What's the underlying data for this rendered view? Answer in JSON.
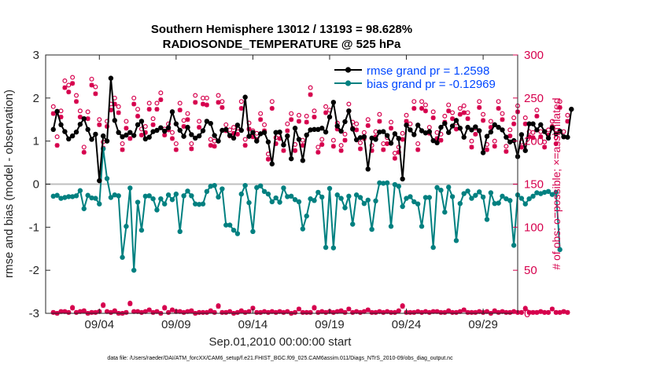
{
  "chart_data": {
    "type": "line",
    "title": "Southern Hemisphere 13012 / 13193 = 98.628%",
    "subtitle": "RADIOSONDE_TEMPERATURE @ 525 hPa",
    "xlabel": "Sep.01,2010 00:00:00 start",
    "ylabel_left": "rmse and bias (model - observation)",
    "ylabel_right": "# of obs: o=possible; ×=assimilated",
    "footnote": "data file: /Users/raeder/DAI/ATM_forcXX/CAM6_setup/f.e21.FHIST_BGC.f09_025.CAM6assim.011/Diags_NTrS_2010-09/obs_diag_output.nc",
    "xlim": [
      0.5,
      31.25
    ],
    "ylim_left": [
      -3,
      3
    ],
    "ylim_right": [
      0,
      300
    ],
    "x_ticks": [
      4,
      9,
      14,
      19,
      24,
      29
    ],
    "x_tick_labels": [
      "09/04",
      "09/09",
      "09/14",
      "09/19",
      "09/24",
      "09/29"
    ],
    "y_ticks_left": [
      -3,
      -2,
      -1,
      0,
      1,
      2,
      3
    ],
    "y_tick_labels_left": [
      "-3",
      "-2",
      "-1",
      "0",
      "1",
      "2",
      "3"
    ],
    "y_ticks_right": [
      0,
      50,
      100,
      150,
      200,
      250,
      300
    ],
    "y_tick_labels_right": [
      "0",
      "50",
      "100",
      "150",
      "200",
      "250",
      "300"
    ],
    "legend": {
      "position": "top-right",
      "entries": [
        "rmse grand pr = 1.2598",
        "bias grand pr = -0.12969"
      ]
    },
    "colors": {
      "rmse": "#000000",
      "bias": "#008080",
      "obs": "#d6004d",
      "zero_line": "#bfbfbf",
      "legend_text": "#0047ff"
    },
    "rmse": [
      1.27,
      1.69,
      1.38,
      1.22,
      1.05,
      1.12,
      1.21,
      1.39,
      1.52,
      1.27,
      1.04,
      1.16,
      0.08,
      1.12,
      1.0,
      2.46,
      1.48,
      1.2,
      1.1,
      1.14,
      1.2,
      1.13,
      1.38,
      1.46,
      1.05,
      1.09,
      1.22,
      1.25,
      1.31,
      1.23,
      1.31,
      1.68,
      1.4,
      1.25,
      1.11,
      1.32,
      1.15,
      1.07,
      1.12,
      1.24,
      1.46,
      1.41,
      1.13,
      1.0,
      1.25,
      1.27,
      1.13,
      1.07,
      1.37,
      1.25,
      2.02,
      1.11,
      1.2,
      1.0,
      1.17,
      1.2,
      0.98,
      0.47,
      1.2,
      1.21,
      0.91,
      1.12,
      0.59,
      1.3,
      1.04,
      0.55,
      1.14,
      1.26,
      1.27,
      1.27,
      1.3,
      1.21,
      1.56,
      1.9,
      1.35,
      1.23,
      1.45,
      1.7,
      1.28,
      1.03,
      1.08,
      1.1,
      0.35,
      1.07,
      1.04,
      1.21,
      1.22,
      1.13,
      0.95,
      1.17,
      1.06,
      0.12,
      1.37,
      1.26,
      1.15,
      1.37,
      1.24,
      1.19,
      1.22,
      1.01,
      0.96,
      1.32,
      1.41,
      1.2,
      1.35,
      1.48,
      1.3,
      1.09,
      1.32,
      1.26,
      1.33,
      1.24,
      0.73,
      1.11,
      1.21,
      1.38,
      1.32,
      1.26,
      1.09,
      0.98,
      1.01,
      0.64,
      1.15,
      0.78,
      1.4,
      1.4,
      1.26,
      1.38,
      1.22,
      1.07,
      1.31,
      1.17,
      1.23,
      1.1,
      1.09,
      1.74
    ],
    "bias": [
      -0.28,
      -0.26,
      -0.33,
      -0.31,
      -0.29,
      -0.29,
      -0.27,
      -0.15,
      -0.57,
      -0.26,
      -0.32,
      -0.33,
      -0.46,
      0.82,
      0.13,
      -0.31,
      -0.25,
      -0.27,
      -1.7,
      -0.98,
      -0.09,
      -2.0,
      -0.42,
      -1.07,
      -0.28,
      -0.27,
      -0.34,
      -0.6,
      -0.34,
      -0.46,
      -0.25,
      -0.36,
      -0.23,
      -1.1,
      -0.27,
      -0.16,
      -0.27,
      -0.46,
      -0.47,
      -0.46,
      -0.17,
      -0.05,
      -0.03,
      -0.3,
      -0.11,
      -0.95,
      -0.95,
      -1.07,
      -1.15,
      -0.23,
      -0.03,
      -0.43,
      -1.1,
      -0.08,
      -0.04,
      -0.17,
      -0.23,
      -0.41,
      -0.32,
      -0.42,
      -0.09,
      -0.29,
      -0.28,
      -0.36,
      -0.41,
      -1.04,
      -0.74,
      -0.34,
      -0.38,
      -0.19,
      -0.3,
      -1.47,
      -0.1,
      -1.48,
      -0.25,
      -0.33,
      -0.55,
      -0.28,
      -0.93,
      -0.25,
      -0.31,
      -0.45,
      -0.37,
      -1.05,
      -0.39,
      0.03,
      0.02,
      0.03,
      -0.98,
      -0.01,
      -0.05,
      -0.52,
      -0.33,
      -0.29,
      -0.41,
      -0.46,
      -0.98,
      -0.31,
      -0.31,
      -1.47,
      -0.08,
      -0.14,
      -0.65,
      -0.07,
      -0.29,
      -1.31,
      -0.45,
      -0.22,
      -0.16,
      -0.33,
      -0.26,
      -0.18,
      -0.3,
      -0.82,
      -0.2,
      -0.45,
      -0.44,
      -0.28,
      -0.34,
      -0.38,
      -1.42,
      -0.25,
      -0.33,
      -0.46,
      -0.34,
      -0.28,
      -0.2,
      -0.22,
      -0.19,
      -0.17,
      -0.24,
      -0.19,
      -1.52
    ],
    "obs_possible_top": [
      240,
      205,
      235,
      270,
      265,
      274,
      253,
      235,
      193,
      234,
      272,
      263,
      225,
      199,
      223,
      243,
      250,
      240,
      197,
      223,
      210,
      250,
      237,
      214,
      217,
      244,
      226,
      244,
      256,
      214,
      220,
      210,
      197,
      244,
      224,
      232,
      197,
      253,
      223,
      250,
      250,
      202,
      200,
      253,
      246,
      219,
      213,
      216,
      215,
      246,
      202,
      221,
      212,
      209,
      232,
      219,
      185,
      246,
      204,
      210,
      196,
      220,
      232,
      196,
      230,
      201,
      229,
      262,
      235,
      193,
      202,
      240,
      236,
      201,
      221,
      195,
      208,
      243,
      222,
      220,
      198,
      210,
      225,
      195,
      211,
      231,
      197,
      204,
      222,
      186,
      193,
      209,
      230,
      220,
      246,
      197,
      246,
      242,
      216,
      234,
      210,
      208,
      229,
      242,
      233,
      221,
      238,
      241,
      233,
      200,
      215,
      246,
      231,
      196,
      223,
      200,
      246,
      232,
      194,
      213,
      227,
      241,
      199,
      227,
      211,
      210,
      236,
      211,
      199,
      213,
      223,
      204,
      246,
      211,
      230
    ],
    "obs_assim_top": [
      232,
      195,
      228,
      262,
      257,
      267,
      246,
      228,
      187,
      226,
      265,
      255,
      219,
      192,
      217,
      236,
      243,
      233,
      190,
      215,
      203,
      243,
      229,
      207,
      210,
      237,
      219,
      237,
      248,
      207,
      213,
      203,
      190,
      236,
      217,
      225,
      191,
      245,
      216,
      243,
      242,
      195,
      194,
      245,
      239,
      212,
      206,
      209,
      208,
      238,
      195,
      214,
      205,
      202,
      225,
      212,
      179,
      238,
      197,
      203,
      189,
      212,
      225,
      189,
      223,
      195,
      222,
      254,
      228,
      187,
      196,
      233,
      228,
      194,
      214,
      189,
      201,
      235,
      215,
      213,
      191,
      203,
      218,
      189,
      205,
      223,
      190,
      197,
      215,
      180,
      187,
      202,
      223,
      213,
      238,
      190,
      238,
      235,
      209,
      227,
      203,
      201,
      222,
      235,
      226,
      214,
      231,
      233,
      226,
      193,
      208,
      239,
      224,
      190,
      216,
      194,
      238,
      225,
      188,
      206,
      220,
      234,
      193,
      220,
      205,
      204,
      229,
      205,
      193,
      207,
      217,
      197,
      239,
      205,
      223
    ],
    "obs_possible_bottom": [
      1,
      0,
      2,
      2,
      1,
      7,
      1,
      2,
      3,
      0,
      1,
      1,
      2,
      10,
      2,
      1,
      3,
      0,
      0,
      1,
      12,
      2,
      2,
      1,
      2,
      4,
      1,
      2,
      0,
      7,
      1,
      4,
      2,
      2,
      1,
      2,
      3,
      0,
      1,
      1,
      1,
      3,
      1,
      9,
      1,
      1,
      2,
      0,
      1,
      3,
      1,
      2,
      6,
      1,
      1,
      2,
      1,
      2,
      1,
      2,
      1,
      2,
      0,
      1,
      5,
      1,
      1,
      1,
      7,
      1,
      2,
      1,
      2,
      1,
      2,
      3,
      1,
      5,
      1,
      2,
      1,
      2,
      4,
      1,
      1,
      2,
      1,
      2,
      1,
      1,
      3,
      9,
      1,
      1,
      1,
      2,
      1,
      2,
      1,
      2,
      2,
      1,
      1,
      3,
      1,
      1,
      2,
      4,
      1,
      1,
      1,
      2,
      1,
      2,
      0,
      3,
      1,
      2,
      1,
      1,
      2,
      1,
      1,
      6,
      1,
      1,
      1,
      2,
      1,
      1,
      5,
      1,
      1,
      2,
      1
    ],
    "obs_assim_bottom": [
      1,
      0,
      2,
      2,
      1,
      6,
      1,
      2,
      3,
      0,
      1,
      1,
      2,
      9,
      2,
      1,
      3,
      0,
      0,
      1,
      11,
      2,
      2,
      1,
      2,
      4,
      1,
      2,
      0,
      6,
      1,
      4,
      2,
      2,
      1,
      2,
      3,
      0,
      1,
      1,
      1,
      3,
      1,
      8,
      1,
      1,
      2,
      0,
      1,
      3,
      1,
      2,
      6,
      1,
      1,
      2,
      1,
      2,
      1,
      2,
      1,
      2,
      0,
      1,
      5,
      1,
      1,
      1,
      6,
      1,
      2,
      1,
      2,
      1,
      2,
      3,
      1,
      5,
      1,
      2,
      1,
      2,
      4,
      1,
      1,
      2,
      1,
      2,
      1,
      1,
      3,
      8,
      1,
      1,
      1,
      2,
      1,
      2,
      1,
      2,
      2,
      1,
      1,
      3,
      1,
      1,
      2,
      4,
      1,
      1,
      1,
      2,
      1,
      2,
      0,
      3,
      1,
      2,
      1,
      1,
      2,
      1,
      1,
      5,
      1,
      1,
      1,
      2,
      1,
      1,
      5,
      1,
      1,
      2,
      1
    ]
  }
}
